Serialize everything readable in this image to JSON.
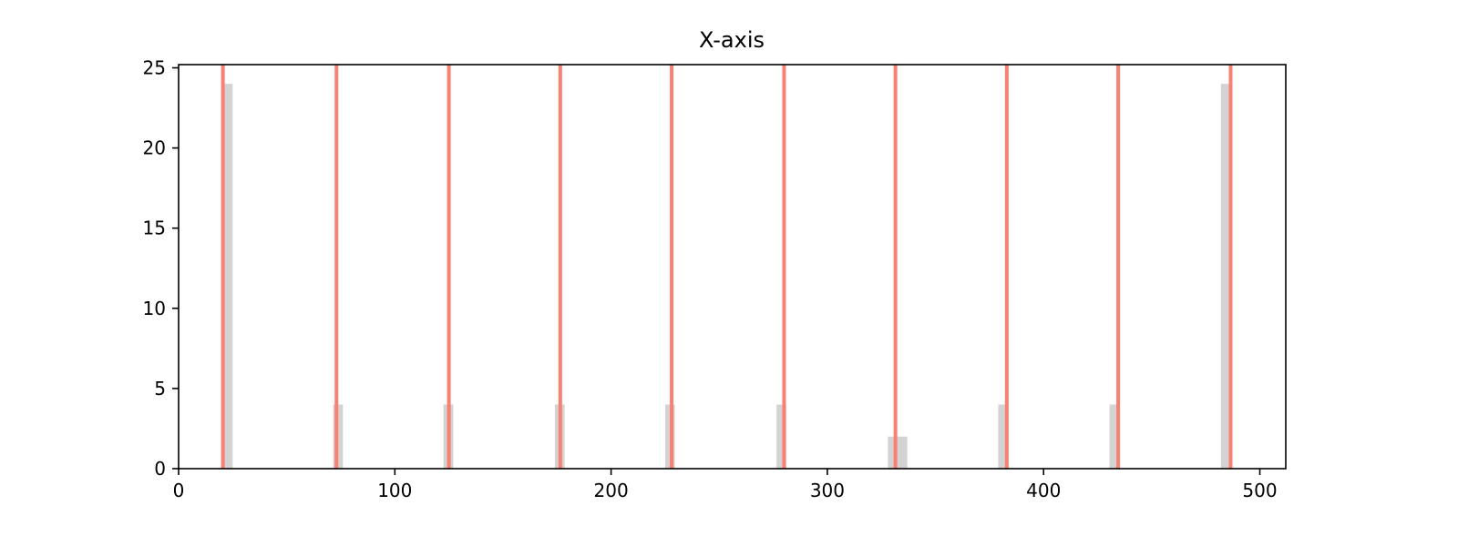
{
  "chart_data": {
    "type": "bar",
    "title": "X-axis",
    "xlim": [
      0,
      512
    ],
    "ylim": [
      0,
      25.2
    ],
    "xticks": [
      0,
      100,
      200,
      300,
      400,
      500
    ],
    "yticks": [
      0,
      5,
      10,
      15,
      20,
      25
    ],
    "grid": false,
    "bars": [
      {
        "x0": 20.5,
        "x1": 25.0,
        "value": 24
      },
      {
        "x0": 71.5,
        "x1": 76.0,
        "value": 4
      },
      {
        "x0": 122.5,
        "x1": 127.0,
        "value": 4
      },
      {
        "x0": 174.0,
        "x1": 178.5,
        "value": 4
      },
      {
        "x0": 225.0,
        "x1": 229.5,
        "value": 4
      },
      {
        "x0": 276.5,
        "x1": 281.0,
        "value": 4
      },
      {
        "x0": 328.0,
        "x1": 337.0,
        "value": 2
      },
      {
        "x0": 379.0,
        "x1": 383.5,
        "value": 4
      },
      {
        "x0": 430.5,
        "x1": 435.0,
        "value": 4
      },
      {
        "x0": 482.0,
        "x1": 486.5,
        "value": 24
      }
    ],
    "vlines": [
      20.5,
      73.0,
      125.0,
      176.5,
      228.0,
      280.0,
      331.5,
      383.0,
      434.5,
      486.5
    ],
    "colors": {
      "bars": "#d3d3d3",
      "vlines": "#fa8072",
      "axes": "#000000"
    }
  }
}
